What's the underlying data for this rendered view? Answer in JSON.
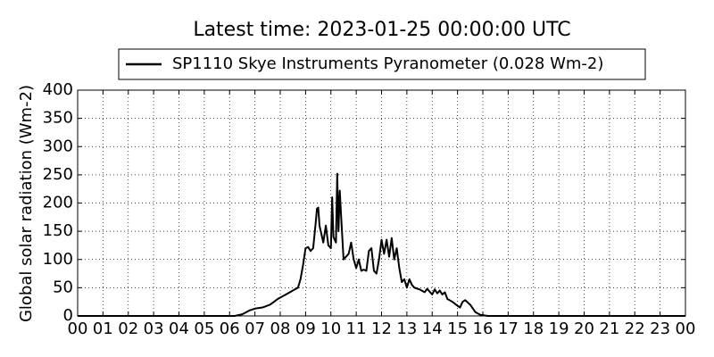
{
  "chart_data": {
    "type": "line",
    "title": "Latest time: 2023-01-25 00:00:00 UTC",
    "y_label": "Global solar radiation (Wm-2)",
    "legend": "upper center",
    "grid": true,
    "xlim": [
      0,
      24
    ],
    "ylim": [
      0,
      400
    ],
    "xticks": [
      {
        "value": 0,
        "label": "00"
      },
      {
        "value": 1,
        "label": "01"
      },
      {
        "value": 2,
        "label": "02"
      },
      {
        "value": 3,
        "label": "03"
      },
      {
        "value": 4,
        "label": "04"
      },
      {
        "value": 5,
        "label": "05"
      },
      {
        "value": 6,
        "label": "06"
      },
      {
        "value": 7,
        "label": "07"
      },
      {
        "value": 8,
        "label": "08"
      },
      {
        "value": 9,
        "label": "09"
      },
      {
        "value": 10,
        "label": "10"
      },
      {
        "value": 11,
        "label": "11"
      },
      {
        "value": 12,
        "label": "12"
      },
      {
        "value": 13,
        "label": "13"
      },
      {
        "value": 14,
        "label": "14"
      },
      {
        "value": 15,
        "label": "15"
      },
      {
        "value": 16,
        "label": "16"
      },
      {
        "value": 17,
        "label": "17"
      },
      {
        "value": 18,
        "label": "18"
      },
      {
        "value": 19,
        "label": "19"
      },
      {
        "value": 20,
        "label": "20"
      },
      {
        "value": 21,
        "label": "21"
      },
      {
        "value": 22,
        "label": "22"
      },
      {
        "value": 23,
        "label": "23"
      },
      {
        "value": 24,
        "label": "00"
      }
    ],
    "yticks": [
      0,
      50,
      100,
      150,
      200,
      250,
      300,
      350,
      400
    ],
    "x": [
      0,
      6.2,
      6.5,
      6.8,
      7,
      7.3,
      7.6,
      7.9,
      8.1,
      8.3,
      8.5,
      8.7,
      8.8,
      8.9,
      9.0,
      9.1,
      9.2,
      9.3,
      9.4,
      9.45,
      9.5,
      9.55,
      9.6,
      9.7,
      9.8,
      9.9,
      10.0,
      10.05,
      10.1,
      10.2,
      10.25,
      10.3,
      10.35,
      10.4,
      10.5,
      10.6,
      10.7,
      10.8,
      10.9,
      11.0,
      11.1,
      11.2,
      11.3,
      11.4,
      11.5,
      11.6,
      11.7,
      11.8,
      11.9,
      12.0,
      12.1,
      12.2,
      12.3,
      12.4,
      12.5,
      12.6,
      12.7,
      12.8,
      12.9,
      13.0,
      13.1,
      13.2,
      13.3,
      13.5,
      13.7,
      13.8,
      14.0,
      14.1,
      14.2,
      14.3,
      14.4,
      14.5,
      14.6,
      14.8,
      15.0,
      15.1,
      15.2,
      15.3,
      15.5,
      15.7,
      15.9,
      16.2,
      24
    ],
    "series": [
      {
        "name": "SP1110 Skye Instruments Pyranometer (0.028 Wm-2)",
        "color": "#000000",
        "values": [
          0,
          0,
          3,
          10,
          13,
          15,
          20,
          30,
          35,
          40,
          45,
          50,
          65,
          90,
          120,
          122,
          115,
          120,
          165,
          190,
          192,
          160,
          150,
          130,
          160,
          125,
          120,
          210,
          140,
          130,
          252,
          150,
          222,
          180,
          100,
          105,
          110,
          130,
          100,
          85,
          100,
          80,
          82,
          80,
          115,
          120,
          80,
          75,
          100,
          135,
          110,
          135,
          105,
          138,
          100,
          120,
          85,
          60,
          65,
          50,
          65,
          55,
          50,
          47,
          42,
          48,
          38,
          47,
          40,
          45,
          38,
          42,
          30,
          25,
          18,
          15,
          25,
          28,
          20,
          7,
          2,
          0,
          0
        ]
      }
    ]
  }
}
